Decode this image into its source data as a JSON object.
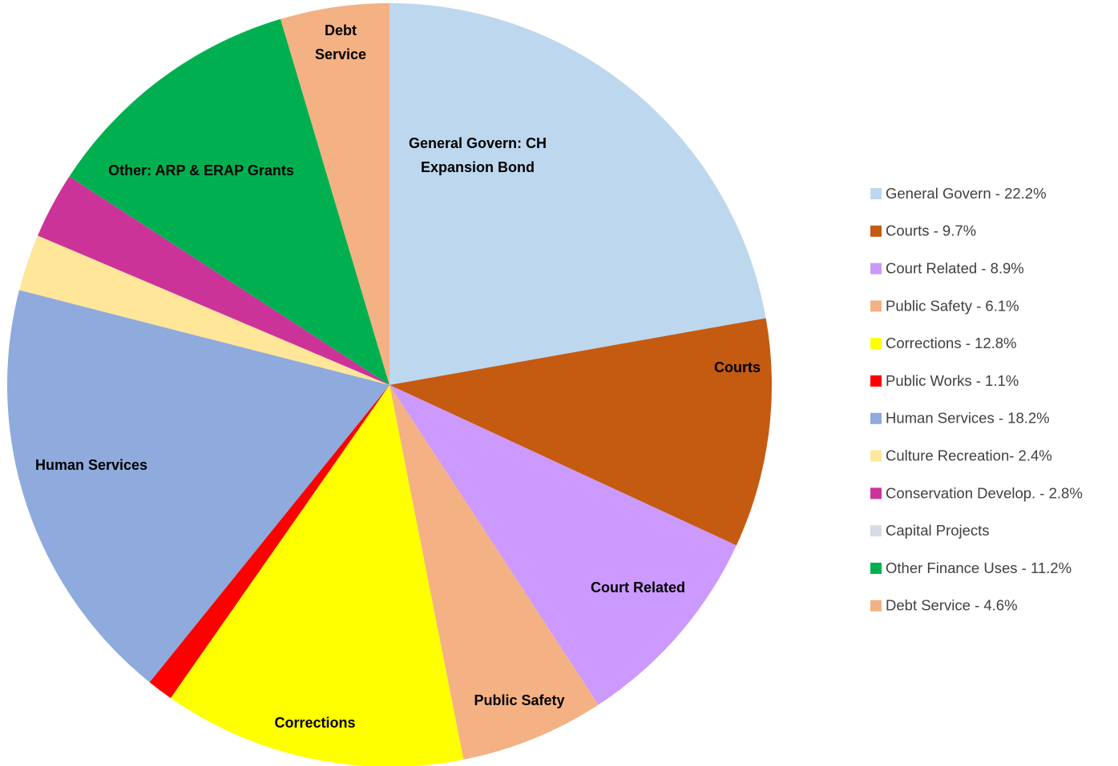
{
  "chart_data": {
    "type": "pie",
    "categories": [
      "General Govern  - 22.2%",
      "Courts  - 9.7%",
      "Court Related  - 8.9%",
      "Public Safety  - 6.1%",
      "Corrections  - 12.8%",
      "Public Works  - 1.1%",
      "Human Services  - 18.2%",
      "Culture Recreation- 2.4%",
      "Conservation Develop. - 2.8%",
      "Capital Projects",
      "Other Finance Uses - 11.2%",
      "Debt Service  - 4.6%"
    ],
    "values": [
      22.2,
      9.7,
      8.9,
      6.1,
      12.8,
      1.1,
      18.2,
      2.4,
      2.8,
      0,
      11.2,
      4.6
    ],
    "colors": [
      "#BDD7EE",
      "#C55A11",
      "#CC99FF",
      "#F4B183",
      "#FFFF00",
      "#FF0000",
      "#8FAADC",
      "#FFE699",
      "#CC3399",
      "#D6DCE5",
      "#00B050",
      "#F4B183"
    ],
    "slice_labels": [
      [
        "General Govern:  CH",
        "Expansion Bond"
      ],
      [
        "Courts"
      ],
      [
        "Court Related"
      ],
      [
        "Public Safety"
      ],
      [
        "Corrections"
      ],
      null,
      [
        "Human Services"
      ],
      null,
      null,
      null,
      [
        "Other:  ARP & ERAP Grants"
      ],
      [
        "Debt",
        "Service"
      ]
    ],
    "legend": "right"
  }
}
